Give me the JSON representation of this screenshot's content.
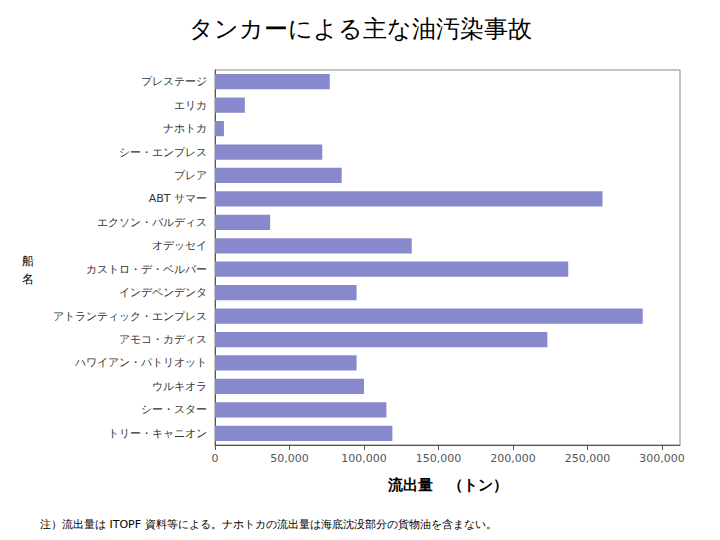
{
  "chart_data": {
    "type": "bar",
    "orientation": "horizontal",
    "title": "タンカーによる主な油汚染事故",
    "xlabel": "流出量　（トン）",
    "ylabel": "船名",
    "note": "注）流出量は ITOPF 資料等による。ナホトカの流出量は海底沈没部分の貨物油を含まない。",
    "categories": [
      "トリー・キャニオン",
      "シー・スター",
      "ウルキオラ",
      "ハワイアン・パトリオット",
      "アモコ・カディス",
      "アトランティック・エンプレス",
      "インデペンデンタ",
      "カストロ・デ・ベルバー",
      "オデッセイ",
      "エクソン・バルディス",
      "ABT サマー",
      "ブレア",
      "シー・エンプレス",
      "ナホトカ",
      "エリカ",
      "プレステージ"
    ],
    "values": [
      119000,
      115000,
      100000,
      95000,
      223000,
      287000,
      95000,
      237000,
      132000,
      37000,
      260000,
      85000,
      72000,
      6000,
      20000,
      77000
    ],
    "color": "#8888cc",
    "xlim": [
      0,
      312000
    ],
    "xticks": [
      0,
      {
        "value": 50000,
        "label": "50,000"
      },
      {
        "value": 100000,
        "label": "100,000"
      },
      {
        "value": 150000,
        "label": "150,000"
      },
      {
        "value": 200000,
        "label": "200,000"
      },
      {
        "value": 250000,
        "label": "250,000"
      },
      {
        "value": 300000,
        "label": "300,000"
      }
    ],
    "grid": false
  }
}
